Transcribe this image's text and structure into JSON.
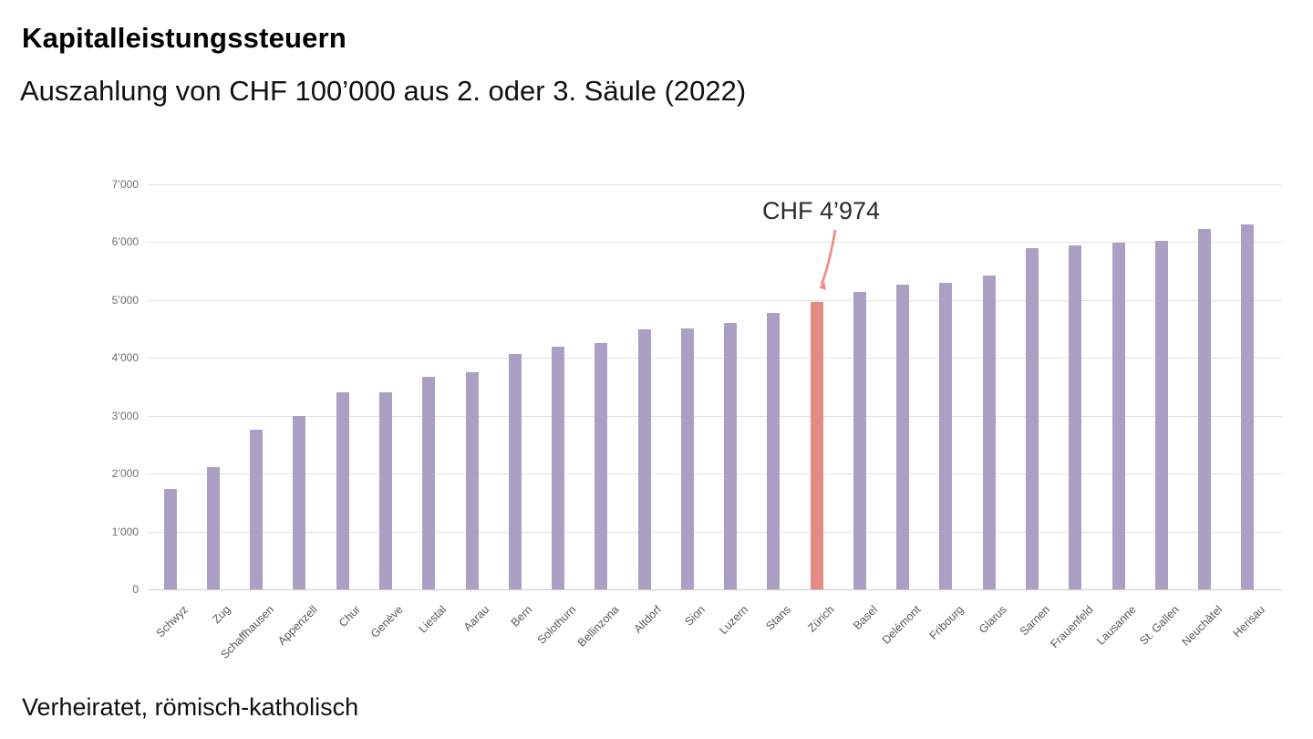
{
  "header": {
    "title": "Kapitalleistungssteuern",
    "subtitle": "Auszahlung von CHF 100’000 aus 2. oder 3. Säule (2022)"
  },
  "footer": {
    "note": "Verheiratet, römisch-katholisch"
  },
  "annotation": {
    "label": "CHF 4’974"
  },
  "chart_data": {
    "type": "bar",
    "title": "Kapitalleistungssteuern",
    "subtitle": "Auszahlung von CHF 100’000 aus 2. oder 3. Säule (2022)",
    "note": "Verheiratet, römisch-katholisch",
    "categories": [
      "Schwyz",
      "Zug",
      "Schaffhausen",
      "Appenzell",
      "Chur",
      "Genève",
      "Liestal",
      "Aarau",
      "Bern",
      "Solothurn",
      "Bellinzona",
      "Altdorf",
      "Sion",
      "Luzern",
      "Stans",
      "Zürich",
      "Basel",
      "Delémont",
      "Fribourg",
      "Glarus",
      "Sarnen",
      "Frauenfeld",
      "Lausanne",
      "St. Gallen",
      "Neuchâtel",
      "Herisau"
    ],
    "values": [
      1740,
      2120,
      2760,
      2990,
      3400,
      3410,
      3680,
      3760,
      4070,
      4200,
      4250,
      4490,
      4510,
      4600,
      4780,
      4974,
      5140,
      5260,
      5300,
      5420,
      5900,
      5940,
      5990,
      6030,
      6220,
      6310
    ],
    "highlight": {
      "index": 15,
      "category": "Zürich",
      "value": 4974,
      "label": "CHF 4’974"
    },
    "xlabel": "",
    "ylabel": "",
    "ylim": [
      0,
      7000
    ],
    "yticks": [
      0,
      1000,
      2000,
      3000,
      4000,
      5000,
      6000,
      7000
    ],
    "ytick_labels": [
      "0",
      "1’000",
      "2’000",
      "3’000",
      "4’000",
      "5’000",
      "6’000",
      "7’000"
    ],
    "grid": true,
    "legend": "none",
    "bar_color": "#ab9fc3",
    "highlight_color": "#e28a83",
    "arrow_color": "#ef8b81"
  }
}
